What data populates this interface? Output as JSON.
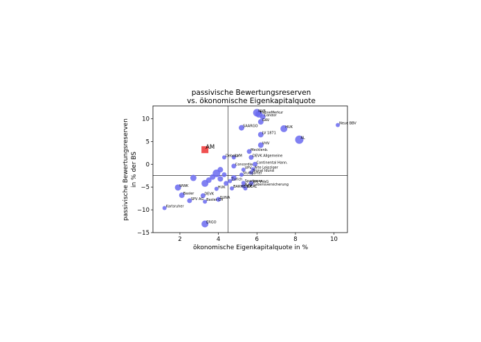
{
  "chart_data": {
    "type": "scatter",
    "title_line1": "passivische Bewertungsreserven",
    "title_line2": "vs. ökonomische Eigenkapitalquote",
    "xlabel": "ökonomische Eigenkapitalquote in %",
    "ylabel_line1": "passivische Bewertungsreserven",
    "ylabel_line2": "in % der BS",
    "xlim": [
      0.6,
      10.7
    ],
    "ylim": [
      -15.0,
      12.8
    ],
    "xticks": [
      2,
      4,
      6,
      8,
      10
    ],
    "yticks": [
      -15,
      -10,
      -5,
      0,
      5,
      10
    ],
    "xtick_labels": [
      "2",
      "4",
      "6",
      "8",
      "10"
    ],
    "ytick_labels": [
      "−15",
      "−10",
      "−5",
      "0",
      "5",
      "10"
    ],
    "vline_x": 4.5,
    "hline_y": -2.5,
    "grid": false,
    "point_color": "#6a6af0",
    "highlight_color": "#f05050",
    "highlight": {
      "label": "AM",
      "x": 3.3,
      "y": 3.2
    },
    "points": [
      {
        "label": "WWK",
        "x": 1.9,
        "y": -5.1,
        "s": 4.5
      },
      {
        "label": "Basler",
        "x": 2.1,
        "y": -6.8,
        "s": 4
      },
      {
        "label": "Karlsruher",
        "x": 1.2,
        "y": -9.6,
        "s": 3
      },
      {
        "label": "SPV AG",
        "x": 2.5,
        "y": -8.0,
        "s": 3.5
      },
      {
        "label": "DEVK",
        "x": 3.2,
        "y": -6.9,
        "s": 3.5
      },
      {
        "label": "Basler CH",
        "x": 3.3,
        "y": -8.2,
        "s": 3
      },
      {
        "label": "DUNA",
        "x": 4.0,
        "y": -7.7,
        "s": 3.5
      },
      {
        "label": "ERGO",
        "x": 3.3,
        "y": -13.1,
        "s": 5
      },
      {
        "label": "",
        "x": 2.7,
        "y": -3.0,
        "s": 4.5
      },
      {
        "label": "",
        "x": 3.3,
        "y": -4.2,
        "s": 5
      },
      {
        "label": "",
        "x": 3.5,
        "y": -3.5,
        "s": 4
      },
      {
        "label": "",
        "x": 3.7,
        "y": -2.8,
        "s": 4
      },
      {
        "label": "",
        "x": 3.9,
        "y": -2.0,
        "s": 5.5
      },
      {
        "label": "",
        "x": 4.1,
        "y": -3.2,
        "s": 4
      },
      {
        "label": "",
        "x": 4.3,
        "y": -2.3,
        "s": 3.5
      },
      {
        "label": "",
        "x": 4.1,
        "y": -1.2,
        "s": 4
      },
      {
        "label": "",
        "x": 4.4,
        "y": -4.2,
        "s": 3.5
      },
      {
        "label": "",
        "x": 4.8,
        "y": -3.0,
        "s": 4
      },
      {
        "label": "HUK",
        "x": 3.9,
        "y": -5.4,
        "s": 3
      },
      {
        "label": "BARMENIA",
        "x": 4.7,
        "y": -5.3,
        "s": 3
      },
      {
        "label": "Zurich",
        "x": 4.6,
        "y": -3.7,
        "s": 3
      },
      {
        "label": "Concordia",
        "x": 4.8,
        "y": -0.4,
        "s": 3.5
      },
      {
        "label": "VPV",
        "x": 5.3,
        "y": -1.2,
        "s": 3
      },
      {
        "label": "Debeka",
        "x": 4.3,
        "y": 1.5,
        "s": 3
      },
      {
        "label": "LVM",
        "x": 4.8,
        "y": 1.5,
        "s": 3
      },
      {
        "label": "Sparkasse",
        "x": 5.3,
        "y": -4.1,
        "s": 3
      },
      {
        "label": "DEVK Allgemeine",
        "x": 5.7,
        "y": 1.5,
        "s": 3.5
      },
      {
        "label": "Mecklenb.",
        "x": 5.6,
        "y": 2.8,
        "s": 3.5
      },
      {
        "label": "Continental Hann.",
        "x": 5.9,
        "y": 0.0,
        "s": 3.5
      },
      {
        "label": "Alte Leipziger",
        "x": 5.8,
        "y": -1.1,
        "s": 3
      },
      {
        "label": "Signal Iduna",
        "x": 5.7,
        "y": -1.8,
        "s": 3
      },
      {
        "label": "Stuttgarter",
        "x": 5.2,
        "y": -2.3,
        "s": 3
      },
      {
        "label": "IDEAL",
        "x": 5.4,
        "y": -5.3,
        "s": 3
      },
      {
        "label": "WV VVaG",
        "x": 5.7,
        "y": -4.2,
        "s": 3.5
      },
      {
        "label": "R+V Lebensversicherung",
        "x": 5.3,
        "y": -4.8,
        "s": 3
      },
      {
        "label": "LV 1871",
        "x": 6.2,
        "y": 6.5,
        "s": 4
      },
      {
        "label": "VHV",
        "x": 6.2,
        "y": 4.2,
        "s": 4
      },
      {
        "label": "HUK",
        "x": 7.4,
        "y": 7.8,
        "s": 5
      },
      {
        "label": "AL",
        "x": 8.2,
        "y": 5.4,
        "s": 6
      },
      {
        "label": "SAARGO",
        "x": 5.2,
        "y": 8.0,
        "s": 4
      },
      {
        "label": "Neue BBV",
        "x": 10.2,
        "y": 8.6,
        "s": 3
      },
      {
        "label": "GAV",
        "x": 6.2,
        "y": 9.3,
        "s": 4
      },
      {
        "label": "Condor",
        "x": 6.3,
        "y": 10.4,
        "s": 4
      },
      {
        "label": "HanseMerkur",
        "x": 6.1,
        "y": 11.0,
        "s": 5
      },
      {
        "label": "NVB",
        "x": 6.0,
        "y": 11.3,
        "s": 5.5
      }
    ]
  }
}
